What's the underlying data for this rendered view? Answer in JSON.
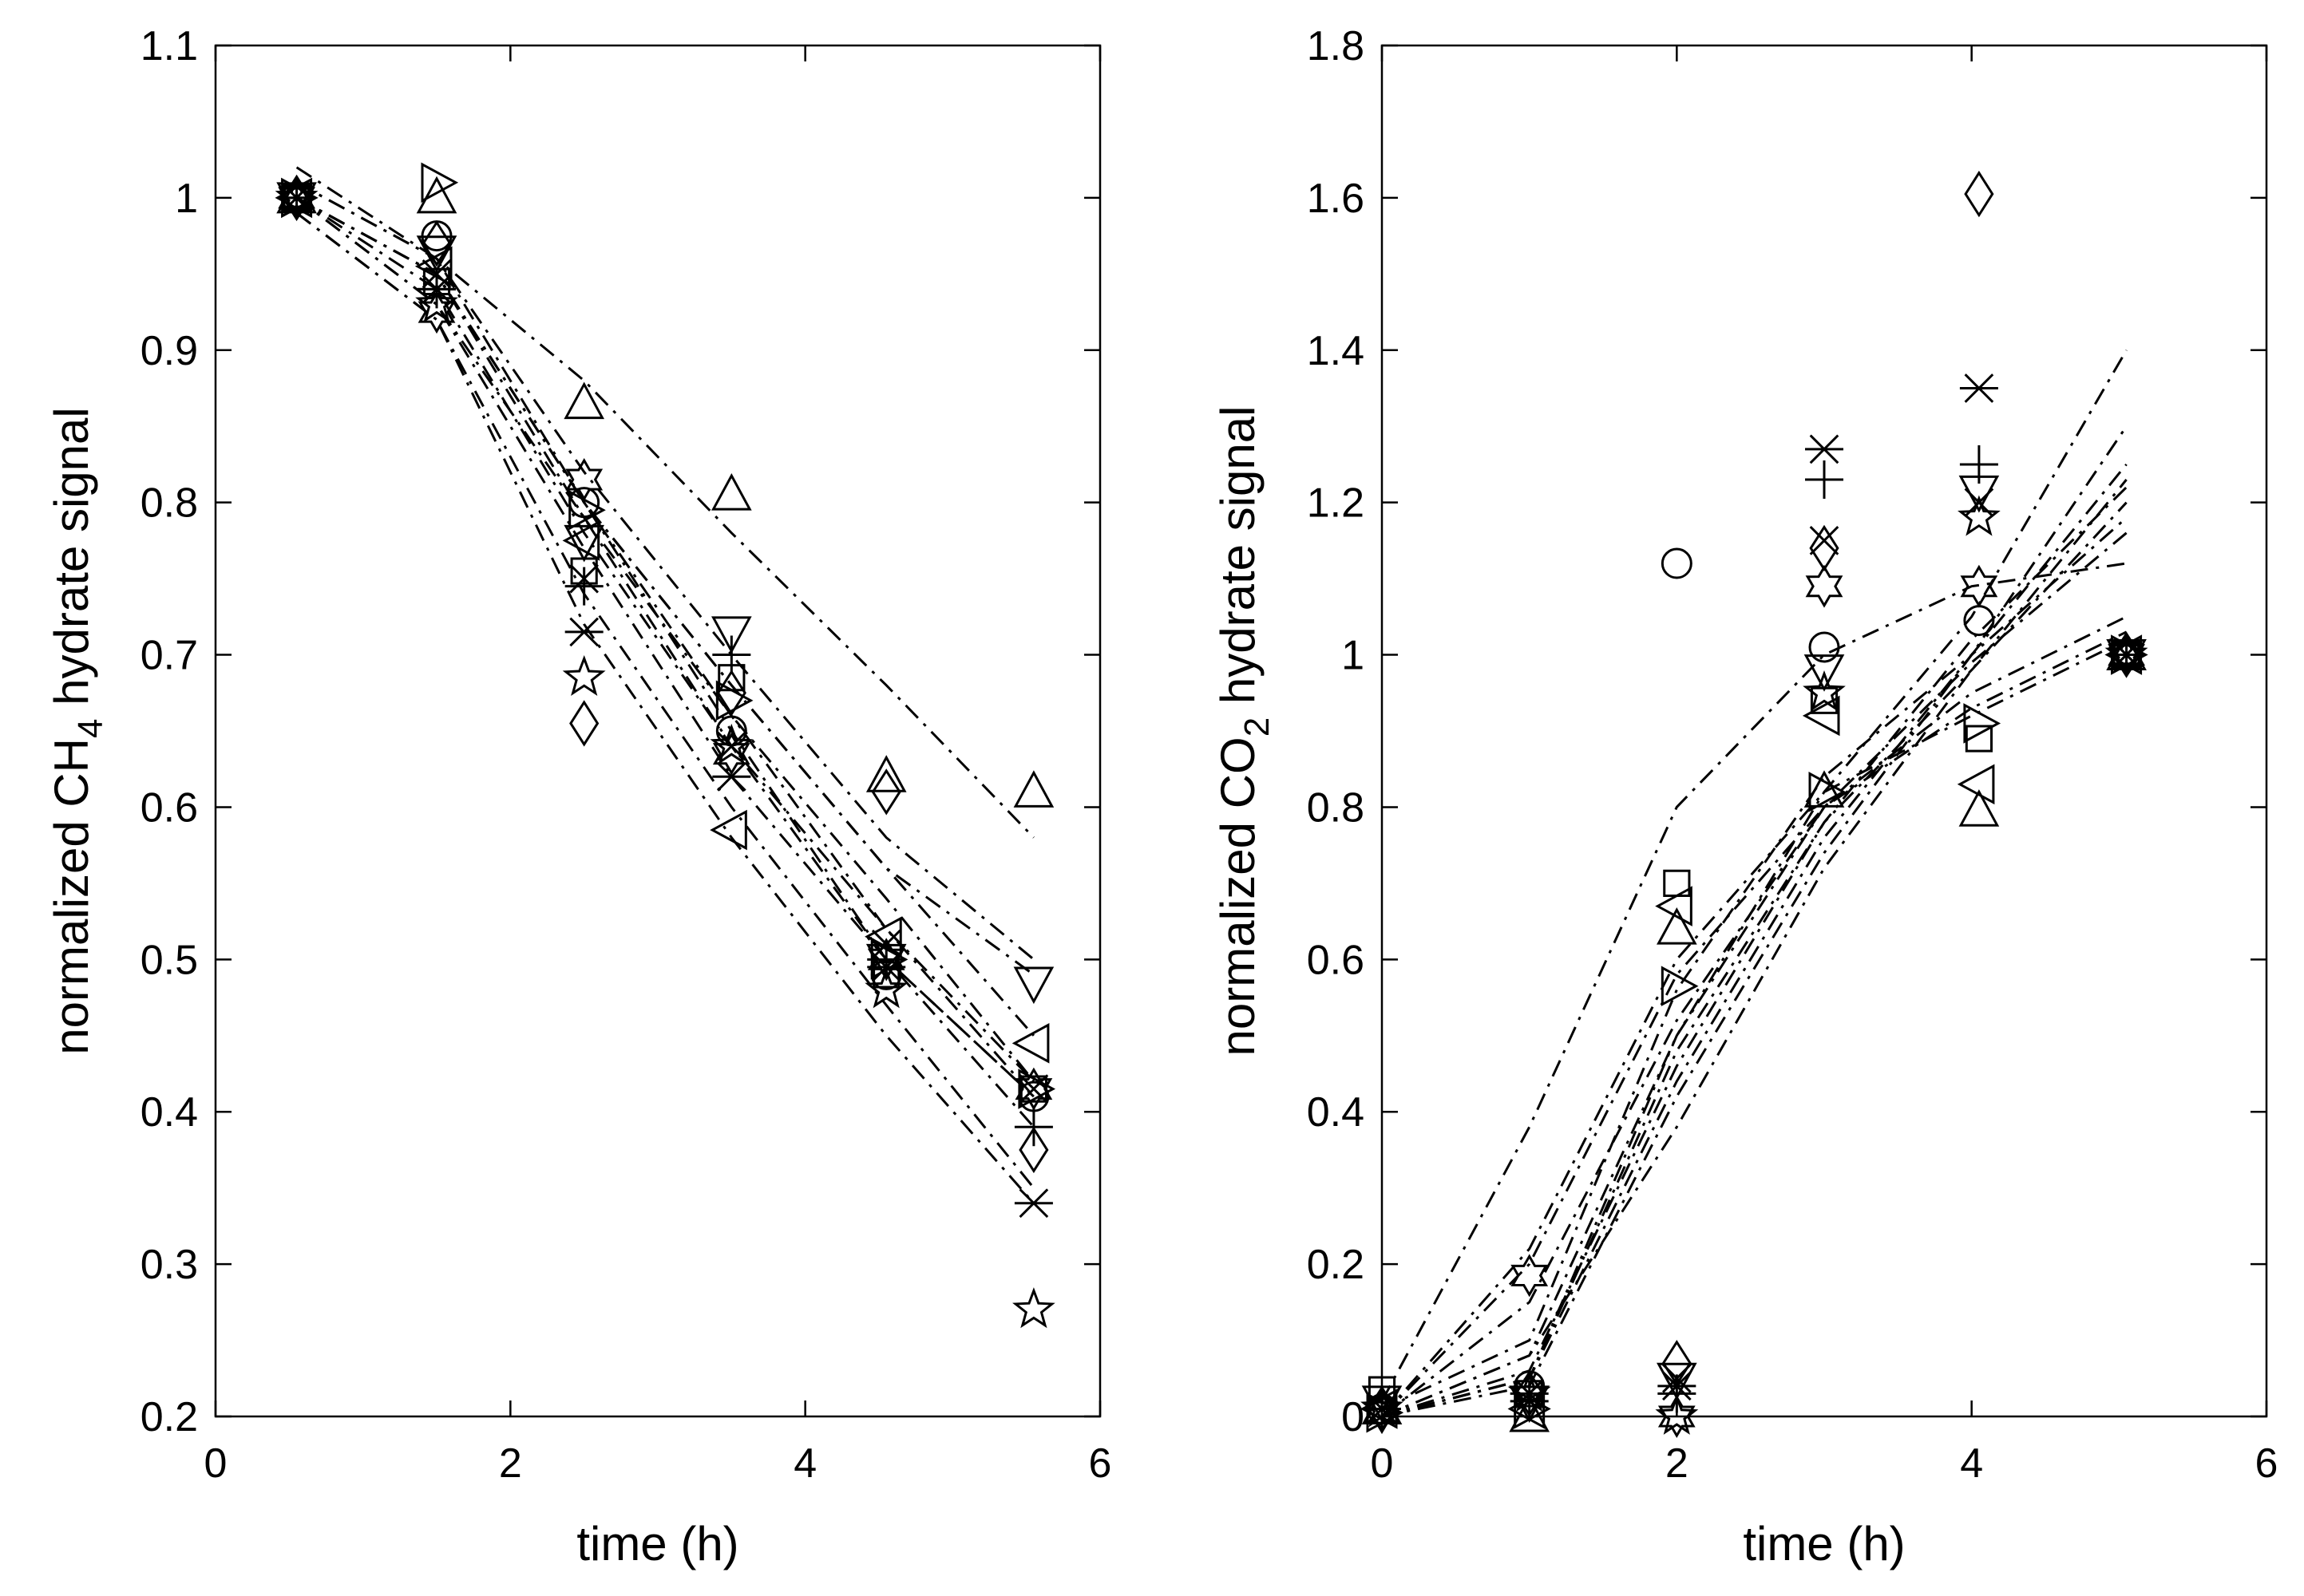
{
  "chart_data": [
    {
      "type": "scatter",
      "xlabel": "time (h)",
      "ylabel": "normalized CH",
      "ylabel_sub": "4",
      "ylabel_suffix": " hydrate signal",
      "xlim": [
        0,
        6
      ],
      "ylim": [
        0.2,
        1.1
      ],
      "xticks": [
        0,
        2,
        4,
        6
      ],
      "xtick_labels": [
        "0",
        "2",
        "4",
        "6"
      ],
      "yticks": [
        0.2,
        0.3,
        0.4,
        0.5,
        0.6,
        0.7,
        0.8,
        0.9,
        1.0,
        1.1
      ],
      "ytick_labels": [
        "0.2",
        "0.3",
        "0.4",
        "0.5",
        "0.6",
        "0.7",
        "0.8",
        "0.9",
        "1",
        "1.1"
      ],
      "grid": false,
      "x": [
        0.55,
        1.5,
        2.5,
        3.5,
        4.55,
        5.55
      ],
      "series": [
        {
          "name": "triangle-up",
          "marker": "triangle-up",
          "values": [
            1.0,
            1.0,
            0.865,
            0.805,
            0.62,
            0.61
          ],
          "fit": [
            1.01,
            0.96,
            0.88,
            0.78,
            0.68,
            0.58
          ]
        },
        {
          "name": "circle",
          "marker": "circle",
          "values": [
            1.0,
            0.975,
            0.8,
            0.65,
            0.49,
            0.41
          ],
          "fit": [
            1.0,
            0.95,
            0.8,
            0.65,
            0.5,
            0.41
          ]
        },
        {
          "name": "triangle-right",
          "marker": "triangle-right",
          "values": [
            1.0,
            1.01,
            0.795,
            0.67,
            0.5,
            0.415
          ],
          "fit": [
            1.02,
            0.96,
            0.8,
            0.66,
            0.52,
            0.41
          ]
        },
        {
          "name": "triangle-down",
          "marker": "triangle-down",
          "values": [
            1.0,
            0.965,
            0.775,
            0.715,
            0.5,
            0.485
          ],
          "fit": [
            1.01,
            0.96,
            0.82,
            0.7,
            0.58,
            0.5
          ]
        },
        {
          "name": "triangle-left",
          "marker": "triangle-left",
          "values": [
            1.0,
            0.955,
            0.775,
            0.585,
            0.515,
            0.445
          ],
          "fit": [
            1.0,
            0.95,
            0.8,
            0.68,
            0.56,
            0.45
          ]
        },
        {
          "name": "square",
          "marker": "square",
          "values": [
            1.0,
            0.945,
            0.755,
            0.685,
            0.49,
            0.415
          ],
          "fit": [
            1.0,
            0.95,
            0.79,
            0.66,
            0.54,
            0.42
          ]
        },
        {
          "name": "diamond",
          "marker": "diamond",
          "values": [
            1.0,
            0.97,
            0.655,
            0.675,
            0.61,
            0.375
          ],
          "fit": [
            1.0,
            0.95,
            0.8,
            0.68,
            0.56,
            0.49
          ]
        },
        {
          "name": "asterisk",
          "marker": "asterisk",
          "values": [
            1.0,
            0.94,
            0.715,
            0.62,
            0.495,
            0.34
          ],
          "fit": [
            0.99,
            0.92,
            0.74,
            0.6,
            0.47,
            0.35
          ]
        },
        {
          "name": "plus",
          "marker": "plus",
          "values": [
            1.0,
            0.94,
            0.745,
            0.7,
            0.5,
            0.39
          ],
          "fit": [
            1.0,
            0.93,
            0.77,
            0.62,
            0.5,
            0.39
          ]
        },
        {
          "name": "x-cross",
          "marker": "x-cross",
          "values": [
            1.0,
            0.95,
            0.75,
            0.64,
            0.51,
            0.415
          ],
          "fit": [
            1.0,
            0.94,
            0.78,
            0.64,
            0.52,
            0.42
          ]
        },
        {
          "name": "hexagram",
          "marker": "hexagram",
          "values": [
            1.0,
            0.925,
            0.815,
            0.635,
            0.5,
            0.415
          ],
          "fit": [
            1.0,
            0.93,
            0.79,
            0.64,
            0.5,
            0.41
          ]
        },
        {
          "name": "pentagram",
          "marker": "pentagram",
          "values": [
            1.0,
            0.93,
            0.685,
            0.64,
            0.48,
            0.27
          ],
          "fit": [
            0.99,
            0.92,
            0.72,
            0.58,
            0.45,
            0.34
          ]
        }
      ]
    },
    {
      "type": "scatter",
      "xlabel": "time (h)",
      "ylabel": "normalized CO",
      "ylabel_sub": "2",
      "ylabel_suffix": " hydrate signal",
      "xlim": [
        0,
        6
      ],
      "ylim": [
        0,
        1.8
      ],
      "xticks": [
        0,
        2,
        4,
        6
      ],
      "xtick_labels": [
        "0",
        "2",
        "4",
        "6"
      ],
      "yticks": [
        0,
        0.2,
        0.4,
        0.6,
        0.8,
        1.0,
        1.2,
        1.4,
        1.6,
        1.8
      ],
      "ytick_labels": [
        "0",
        "0.2",
        "0.4",
        "0.6",
        "0.8",
        "1",
        "1.2",
        "1.4",
        "1.6",
        "1.8"
      ],
      "grid": false,
      "x": [
        0.0,
        1.0,
        2.0,
        3.0,
        4.05,
        5.05
      ],
      "fit_x": [
        0.0,
        1.0,
        2.0,
        3.0,
        4.0,
        5.05
      ],
      "series": [
        {
          "name": "circle",
          "marker": "circle",
          "values": [
            0.01,
            0.04,
            1.12,
            1.01,
            1.045,
            1.0
          ],
          "fit": [
            0.02,
            0.38,
            0.8,
            1.0,
            1.09,
            1.12
          ]
        },
        {
          "name": "square",
          "marker": "square",
          "values": [
            0.035,
            0.03,
            0.7,
            0.94,
            0.89,
            1.0
          ],
          "fit": [
            0.01,
            0.1,
            0.56,
            0.84,
            1.0,
            1.25
          ]
        },
        {
          "name": "diamond",
          "marker": "diamond",
          "values": [
            0.01,
            0.03,
            0.07,
            1.14,
            1.605,
            1.0
          ],
          "fit": [
            0.0,
            0.05,
            0.5,
            0.82,
            1.05,
            1.4
          ]
        },
        {
          "name": "triangle-up",
          "marker": "triangle-up",
          "values": [
            0.01,
            0.0,
            0.64,
            0.82,
            0.795,
            1.0
          ],
          "fit": [
            0.0,
            0.22,
            0.6,
            0.82,
            0.92,
            1.02
          ]
        },
        {
          "name": "triangle-left",
          "marker": "triangle-left",
          "values": [
            0.01,
            0.01,
            0.67,
            0.92,
            0.83,
            1.0
          ],
          "fit": [
            0.0,
            0.2,
            0.58,
            0.8,
            0.93,
            1.03
          ]
        },
        {
          "name": "triangle-right",
          "marker": "triangle-right",
          "values": [
            0.005,
            0.01,
            0.565,
            0.82,
            0.91,
            1.0
          ],
          "fit": [
            0.0,
            0.15,
            0.52,
            0.8,
            0.95,
            1.05
          ]
        },
        {
          "name": "triangle-down",
          "marker": "triangle-down",
          "values": [
            0.02,
            0.02,
            0.05,
            0.98,
            1.215,
            1.0
          ],
          "fit": [
            0.0,
            0.06,
            0.46,
            0.78,
            1.02,
            1.22
          ]
        },
        {
          "name": "asterisk",
          "marker": "asterisk",
          "values": [
            0.01,
            0.03,
            0.04,
            1.27,
            1.35,
            1.0
          ],
          "fit": [
            0.0,
            0.04,
            0.42,
            0.74,
            1.0,
            1.3
          ]
        },
        {
          "name": "plus",
          "marker": "plus",
          "values": [
            0.01,
            0.02,
            0.03,
            1.23,
            1.25,
            1.0
          ],
          "fit": [
            0.0,
            0.05,
            0.44,
            0.76,
            1.0,
            1.18
          ]
        },
        {
          "name": "x-cross",
          "marker": "x-cross",
          "values": [
            0.01,
            0.03,
            0.05,
            1.15,
            1.2,
            1.0
          ],
          "fit": [
            0.0,
            0.05,
            0.48,
            0.78,
            0.98,
            1.2
          ]
        },
        {
          "name": "hexagram",
          "marker": "hexagram",
          "values": [
            0.005,
            0.185,
            0.0,
            1.09,
            1.09,
            1.0
          ],
          "fit": [
            0.0,
            0.08,
            0.5,
            0.8,
            0.99,
            1.16
          ]
        },
        {
          "name": "pentagram",
          "marker": "pentagram",
          "values": [
            0.01,
            0.03,
            0.0,
            0.95,
            1.18,
            1.0
          ],
          "fit": [
            0.0,
            0.08,
            0.38,
            0.72,
            0.98,
            1.23
          ]
        }
      ]
    }
  ]
}
